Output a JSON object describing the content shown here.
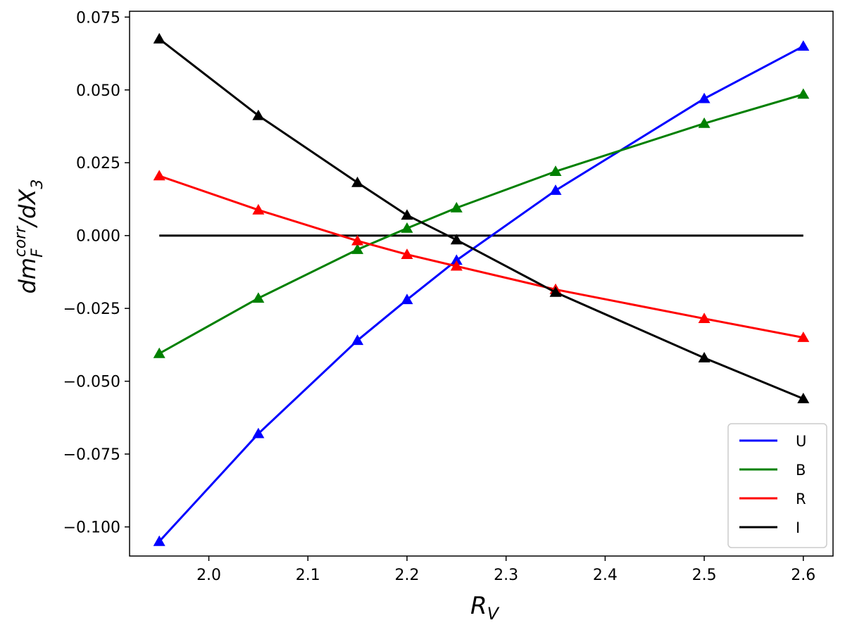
{
  "chart_data": {
    "type": "line",
    "title": "",
    "xlabel_main": "R",
    "xlabel_sub": "V",
    "ylabel_parts": {
      "d": "dm",
      "sub": "F",
      "sup": "corr",
      "rest": "/dX",
      "rest_sub": "3"
    },
    "xlim": [
      1.92,
      2.63
    ],
    "ylim": [
      -0.11,
      0.077
    ],
    "xticks": [
      2.0,
      2.1,
      2.2,
      2.3,
      2.4,
      2.5,
      2.6
    ],
    "xtick_labels": [
      "2.0",
      "2.1",
      "2.2",
      "2.3",
      "2.4",
      "2.5",
      "2.6"
    ],
    "yticks": [
      0.075,
      0.05,
      0.025,
      0.0,
      -0.025,
      -0.05,
      -0.075,
      -0.1
    ],
    "ytick_labels": [
      "0.075",
      "0.050",
      "0.025",
      "0.000",
      "−0.025",
      "−0.050",
      "−0.075",
      "−0.100"
    ],
    "grid": false,
    "legend_position": "bottom-right",
    "zero_line": {
      "x": [
        1.95,
        2.6
      ],
      "y": [
        0.0,
        0.0
      ],
      "color": "#000000"
    },
    "x": [
      1.95,
      2.05,
      2.15,
      2.2,
      2.25,
      2.35,
      2.5,
      2.6
    ],
    "series": [
      {
        "name": "U",
        "color": "#0000ff",
        "values": [
          -0.105,
          -0.068,
          -0.036,
          -0.022,
          -0.0085,
          0.0155,
          0.047,
          0.065
        ]
      },
      {
        "name": "B",
        "color": "#008000",
        "values": [
          -0.0405,
          -0.0215,
          -0.0048,
          0.0025,
          0.0095,
          0.022,
          0.0385,
          0.0485
        ]
      },
      {
        "name": "R",
        "color": "#ff0000",
        "values": [
          0.0205,
          0.0088,
          -0.0018,
          -0.0065,
          -0.0105,
          -0.0185,
          -0.0285,
          -0.035
        ]
      },
      {
        "name": "I",
        "color": "#000000",
        "values": [
          0.0675,
          0.0412,
          0.0182,
          0.007,
          -0.0015,
          -0.0195,
          -0.042,
          -0.056
        ]
      }
    ]
  }
}
